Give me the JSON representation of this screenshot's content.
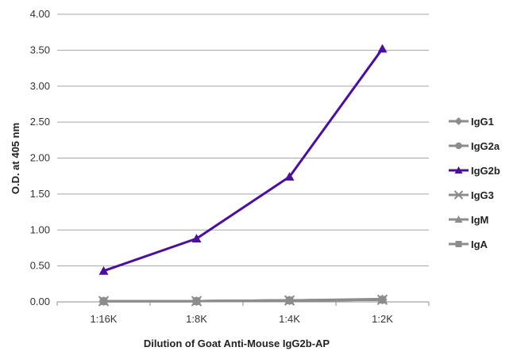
{
  "chart_data": {
    "type": "line",
    "title": "",
    "xlabel": "Dilution of Goat Anti-Mouse IgG2b-AP",
    "ylabel": "O.D. at 405 nm",
    "categories": [
      "1:16K",
      "1:8K",
      "1:4K",
      "1:2K"
    ],
    "ylim": [
      0,
      4
    ],
    "yticks": [
      "0.00",
      "0.50",
      "1.00",
      "1.50",
      "2.00",
      "2.50",
      "3.00",
      "3.50",
      "4.00"
    ],
    "grid": "horizontal",
    "legend_position": "right",
    "series": [
      {
        "name": "IgG1",
        "values": [
          0.01,
          0.01,
          0.02,
          0.03
        ],
        "color": "#8c8c8c",
        "marker": "diamond"
      },
      {
        "name": "IgG2a",
        "values": [
          0.01,
          0.01,
          0.02,
          0.03
        ],
        "color": "#8c8c8c",
        "marker": "circle"
      },
      {
        "name": "IgG2b",
        "values": [
          0.43,
          0.88,
          1.74,
          3.52
        ],
        "color": "#4b0fa0",
        "marker": "triangle"
      },
      {
        "name": "IgG3",
        "values": [
          0.01,
          0.01,
          0.02,
          0.03
        ],
        "color": "#8c8c8c",
        "marker": "x"
      },
      {
        "name": "IgM",
        "values": [
          0.01,
          0.01,
          0.02,
          0.04
        ],
        "color": "#8c8c8c",
        "marker": "triangle"
      },
      {
        "name": "IgA",
        "values": [
          0.01,
          0.01,
          0.02,
          0.03
        ],
        "color": "#8c8c8c",
        "marker": "square"
      }
    ]
  }
}
